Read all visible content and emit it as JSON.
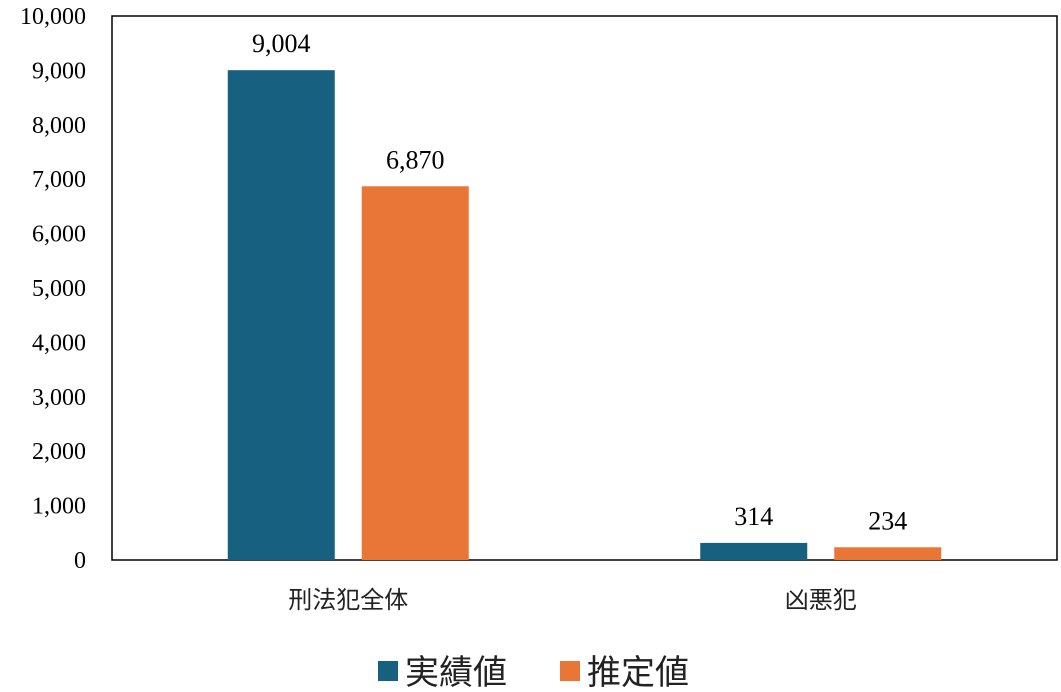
{
  "chart_data": {
    "type": "bar",
    "categories": [
      "刑法犯全体",
      "凶悪犯"
    ],
    "series": [
      {
        "name": "実績値",
        "values": [
          9004,
          314
        ],
        "color": "#17607f"
      },
      {
        "name": "推定値",
        "values": [
          6870,
          234
        ],
        "color": "#e97537"
      }
    ],
    "data_labels": [
      [
        "9,004",
        "314"
      ],
      [
        "6,870",
        "234"
      ]
    ],
    "y_ticks": [
      "0",
      "1,000",
      "2,000",
      "3,000",
      "4,000",
      "5,000",
      "6,000",
      "7,000",
      "8,000",
      "9,000",
      "10,000"
    ],
    "ylim": [
      0,
      10000
    ],
    "grid": false,
    "legend_position": "bottom"
  }
}
